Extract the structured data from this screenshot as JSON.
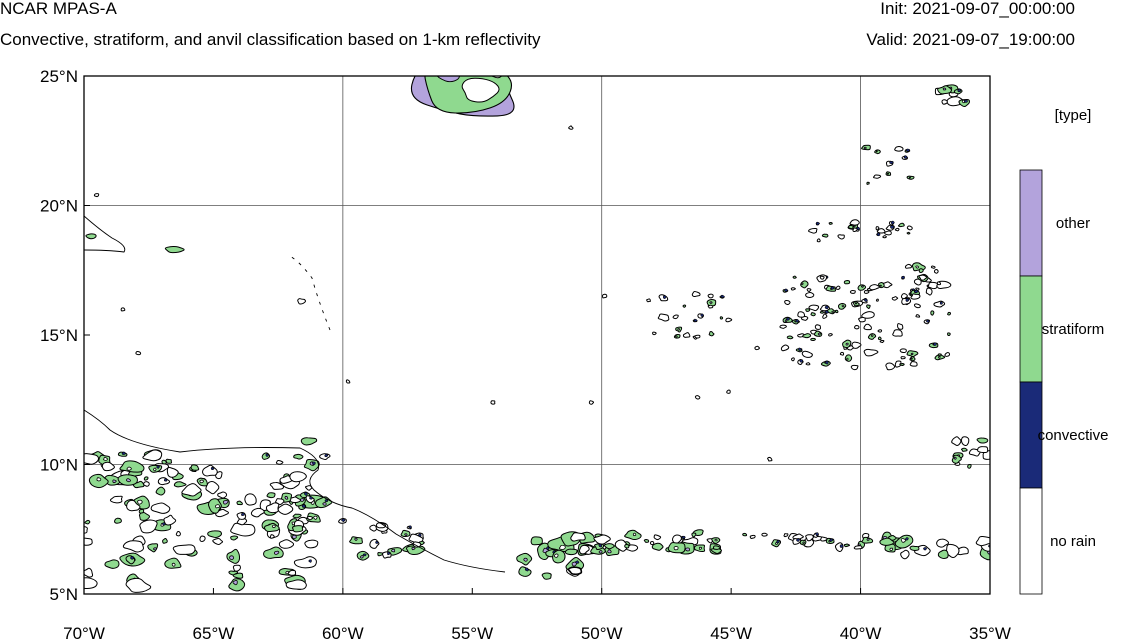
{
  "header": {
    "title": "NCAR MPAS-A",
    "subtitle": "Convective, stratiform, and anvil classification based on 1-km reflectivity",
    "init": "Init: 2021-09-07_00:00:00",
    "valid": "Valid: 2021-09-07_19:00:00"
  },
  "map": {
    "lon_range": [
      -70,
      -35
    ],
    "lat_range": [
      5,
      25
    ],
    "lon_ticks": [
      {
        "value": -70,
        "label": "70°W"
      },
      {
        "value": -65,
        "label": "65°W"
      },
      {
        "value": -60,
        "label": "60°W"
      },
      {
        "value": -55,
        "label": "55°W"
      },
      {
        "value": -50,
        "label": "50°W"
      },
      {
        "value": -45,
        "label": "45°W"
      },
      {
        "value": -40,
        "label": "40°W"
      },
      {
        "value": -35,
        "label": "35°W"
      }
    ],
    "lat_ticks": [
      {
        "value": 5,
        "label": "5°N"
      },
      {
        "value": 10,
        "label": "10°N"
      },
      {
        "value": 15,
        "label": "15°N"
      },
      {
        "value": 20,
        "label": "20°N"
      },
      {
        "value": 25,
        "label": "25°N"
      }
    ],
    "grid_lons": [
      -60,
      -50,
      -40
    ],
    "grid_lats": [
      10,
      20
    ],
    "colors": {
      "convective": "#1a2a78",
      "stratiform": "#8fd98f",
      "other": "#b3a3dc",
      "no_rain": "#ffffff",
      "outline": "#000000"
    }
  },
  "legend": {
    "title": "[type]",
    "items": [
      {
        "label": "other",
        "color": "#b3a3dc"
      },
      {
        "label": "stratiform",
        "color": "#8fd98f"
      },
      {
        "label": "convective",
        "color": "#1a2a78"
      },
      {
        "label": "no rain",
        "color": "#ffffff"
      }
    ]
  }
}
